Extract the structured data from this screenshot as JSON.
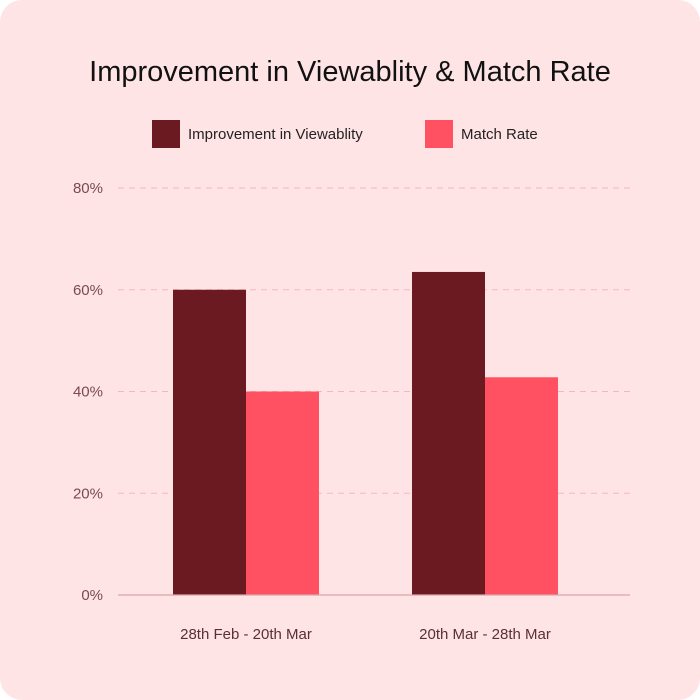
{
  "colors": {
    "background": "#ffe4e6",
    "series_1": "#6b1a22",
    "series_2": "#ff5162",
    "gridline": "#f2b8bf",
    "baseline": "#d9a3aa"
  },
  "chart_data": {
    "type": "bar",
    "title": "Improvement in Viewablity & Match Rate",
    "xlabel": "",
    "ylabel": "",
    "categories": [
      "28th Feb - 20th Mar",
      "20th Mar - 28th Mar"
    ],
    "series": [
      {
        "name": "Improvement in Viewablity",
        "values": [
          60,
          63.5
        ]
      },
      {
        "name": "Match Rate",
        "values": [
          40,
          42.8
        ]
      }
    ],
    "ylim": [
      0,
      80
    ],
    "yticks": [
      0,
      20,
      40,
      60,
      80
    ],
    "ytick_labels": [
      "0%",
      "20%",
      "40%",
      "60%",
      "80%"
    ],
    "grid": true,
    "legend_position": "top-center"
  }
}
